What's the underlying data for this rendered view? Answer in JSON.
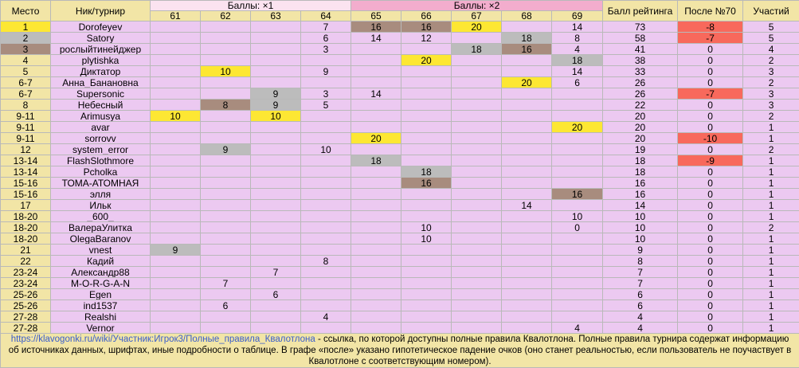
{
  "header": {
    "place": "Место",
    "nick": "Ник/турнир",
    "group1": "Баллы: ×1",
    "group2": "Баллы: ×2",
    "rating": "Балл рейтинга",
    "after": "После №70",
    "count": "Участий",
    "columns": [
      "61",
      "62",
      "63",
      "64",
      "65",
      "66",
      "67",
      "68",
      "69"
    ]
  },
  "rows": [
    {
      "place": "1",
      "name": "Dorofeyev",
      "cells": [
        "",
        "",
        "",
        "7",
        "16",
        "16",
        "20",
        "",
        "14"
      ],
      "rating": "73",
      "after": "-8",
      "count": "5"
    },
    {
      "place": "2",
      "name": "Satory",
      "cells": [
        "",
        "",
        "",
        "6",
        "14",
        "12",
        "",
        "18",
        "8"
      ],
      "rating": "58",
      "after": "-7",
      "count": "5"
    },
    {
      "place": "3",
      "name": "рослыйтинейджер",
      "cells": [
        "",
        "",
        "",
        "3",
        "",
        "",
        "18",
        "16",
        "4"
      ],
      "rating": "41",
      "after": "0",
      "count": "4"
    },
    {
      "place": "4",
      "name": "plytishka",
      "cells": [
        "",
        "",
        "",
        "",
        "",
        "20",
        "",
        "",
        "18"
      ],
      "rating": "38",
      "after": "0",
      "count": "2"
    },
    {
      "place": "5",
      "name": "Диктатор",
      "cells": [
        "",
        "10",
        "",
        "9",
        "",
        "",
        "",
        "",
        "14"
      ],
      "rating": "33",
      "after": "0",
      "count": "3"
    },
    {
      "place": "6-7",
      "name": "Анна_Банановна",
      "cells": [
        "",
        "",
        "",
        "",
        "",
        "",
        "",
        "20",
        "6"
      ],
      "rating": "26",
      "after": "0",
      "count": "2"
    },
    {
      "place": "6-7",
      "name": "Supersonic",
      "cells": [
        "",
        "",
        "9",
        "3",
        "14",
        "",
        "",
        "",
        ""
      ],
      "rating": "26",
      "after": "-7",
      "count": "3"
    },
    {
      "place": "8",
      "name": "Небесный",
      "cells": [
        "",
        "8",
        "9",
        "5",
        "",
        "",
        "",
        "",
        ""
      ],
      "rating": "22",
      "after": "0",
      "count": "3"
    },
    {
      "place": "9-11",
      "name": "Arimusya",
      "cells": [
        "10",
        "",
        "10",
        "",
        "",
        "",
        "",
        "",
        ""
      ],
      "rating": "20",
      "after": "0",
      "count": "2"
    },
    {
      "place": "9-11",
      "name": "avar",
      "cells": [
        "",
        "",
        "",
        "",
        "",
        "",
        "",
        "",
        "20"
      ],
      "rating": "20",
      "after": "0",
      "count": "1"
    },
    {
      "place": "9-11",
      "name": "sorrovv",
      "cells": [
        "",
        "",
        "",
        "",
        "20",
        "",
        "",
        "",
        ""
      ],
      "rating": "20",
      "after": "-10",
      "count": "1"
    },
    {
      "place": "12",
      "name": "system_error",
      "cells": [
        "",
        "9",
        "",
        "10",
        "",
        "",
        "",
        "",
        ""
      ],
      "rating": "19",
      "after": "0",
      "count": "2"
    },
    {
      "place": "13-14",
      "name": "FlashSlothmore",
      "cells": [
        "",
        "",
        "",
        "",
        "18",
        "",
        "",
        "",
        ""
      ],
      "rating": "18",
      "after": "-9",
      "count": "1"
    },
    {
      "place": "13-14",
      "name": "Pcholka",
      "cells": [
        "",
        "",
        "",
        "",
        "",
        "18",
        "",
        "",
        ""
      ],
      "rating": "18",
      "after": "0",
      "count": "1"
    },
    {
      "place": "15-16",
      "name": "ТОМА-АТОМНАЯ",
      "cells": [
        "",
        "",
        "",
        "",
        "",
        "16",
        "",
        "",
        ""
      ],
      "rating": "16",
      "after": "0",
      "count": "1"
    },
    {
      "place": "15-16",
      "name": "элля",
      "cells": [
        "",
        "",
        "",
        "",
        "",
        "",
        "",
        "",
        "16"
      ],
      "rating": "16",
      "after": "0",
      "count": "1"
    },
    {
      "place": "17",
      "name": "Ильк",
      "cells": [
        "",
        "",
        "",
        "",
        "",
        "",
        "",
        "14",
        ""
      ],
      "rating": "14",
      "after": "0",
      "count": "1"
    },
    {
      "place": "18-20",
      "name": "_600_",
      "cells": [
        "",
        "",
        "",
        "",
        "",
        "",
        "",
        "",
        "10"
      ],
      "rating": "10",
      "after": "0",
      "count": "1"
    },
    {
      "place": "18-20",
      "name": "ВалераУлитка",
      "cells": [
        "",
        "",
        "",
        "",
        "",
        "10",
        "",
        "",
        "0"
      ],
      "rating": "10",
      "after": "0",
      "count": "2"
    },
    {
      "place": "18-20",
      "name": "OlegaBaranov",
      "cells": [
        "",
        "",
        "",
        "",
        "",
        "10",
        "",
        "",
        ""
      ],
      "rating": "10",
      "after": "0",
      "count": "1"
    },
    {
      "place": "21",
      "name": "vnest",
      "cells": [
        "9",
        "",
        "",
        "",
        "",
        "",
        "",
        "",
        ""
      ],
      "rating": "9",
      "after": "0",
      "count": "1"
    },
    {
      "place": "22",
      "name": "Кадий",
      "cells": [
        "",
        "",
        "",
        "8",
        "",
        "",
        "",
        "",
        ""
      ],
      "rating": "8",
      "after": "0",
      "count": "1"
    },
    {
      "place": "23-24",
      "name": "Александр88",
      "cells": [
        "",
        "",
        "7",
        "",
        "",
        "",
        "",
        "",
        ""
      ],
      "rating": "7",
      "after": "0",
      "count": "1"
    },
    {
      "place": "23-24",
      "name": "M-O-R-G-A-N",
      "cells": [
        "",
        "7",
        "",
        "",
        "",
        "",
        "",
        "",
        ""
      ],
      "rating": "7",
      "after": "0",
      "count": "1"
    },
    {
      "place": "25-26",
      "name": "Egen",
      "cells": [
        "",
        "",
        "6",
        "",
        "",
        "",
        "",
        "",
        ""
      ],
      "rating": "6",
      "after": "0",
      "count": "1"
    },
    {
      "place": "25-26",
      "name": "ind1537",
      "cells": [
        "",
        "6",
        "",
        "",
        "",
        "",
        "",
        "",
        ""
      ],
      "rating": "6",
      "after": "0",
      "count": "1"
    },
    {
      "place": "27-28",
      "name": "Realshi",
      "cells": [
        "",
        "",
        "",
        "4",
        "",
        "",
        "",
        "",
        ""
      ],
      "rating": "4",
      "after": "0",
      "count": "1"
    },
    {
      "place": "27-28",
      "name": "Vernor",
      "cells": [
        "",
        "",
        "",
        "",
        "",
        "",
        "",
        "",
        "4"
      ],
      "rating": "4",
      "after": "0",
      "count": "1"
    }
  ],
  "highlights": [
    [
      "",
      "",
      "",
      "",
      "nb",
      "nb",
      "ny",
      "",
      ""
    ],
    [
      "",
      "",
      "",
      "",
      "",
      "",
      "",
      "ng",
      ""
    ],
    [
      "",
      "",
      "",
      "",
      "",
      "",
      "ng",
      "nb",
      ""
    ],
    [
      "",
      "",
      "",
      "",
      "",
      "ny",
      "",
      "",
      "ng"
    ],
    [
      "",
      "ny",
      "",
      "",
      "",
      "",
      "",
      "",
      ""
    ],
    [
      "",
      "",
      "",
      "",
      "",
      "",
      "",
      "ny",
      ""
    ],
    [
      "",
      "",
      "ng",
      "",
      "",
      "",
      "",
      "",
      ""
    ],
    [
      "",
      "nb",
      "ng",
      "",
      "",
      "",
      "",
      "",
      ""
    ],
    [
      "ny",
      "",
      "ny",
      "",
      "",
      "",
      "",
      "",
      ""
    ],
    [
      "",
      "",
      "",
      "",
      "",
      "",
      "",
      "",
      "ny"
    ],
    [
      "",
      "",
      "",
      "",
      "ny",
      "",
      "",
      "",
      ""
    ],
    [
      "",
      "ng",
      "",
      "",
      "",
      "",
      "",
      "",
      ""
    ],
    [
      "",
      "",
      "",
      "",
      "ng",
      "",
      "",
      "",
      ""
    ],
    [
      "",
      "",
      "",
      "",
      "",
      "ng",
      "",
      "",
      ""
    ],
    [
      "",
      "",
      "",
      "",
      "",
      "nb",
      "",
      "",
      ""
    ],
    [
      "",
      "",
      "",
      "",
      "",
      "",
      "",
      "",
      "nb"
    ],
    [
      "",
      "",
      "",
      "",
      "",
      "",
      "",
      "",
      ""
    ],
    [
      "",
      "",
      "",
      "",
      "",
      "",
      "",
      "",
      ""
    ],
    [
      "",
      "",
      "",
      "",
      "",
      "",
      "",
      "",
      ""
    ],
    [
      "",
      "",
      "",
      "",
      "",
      "",
      "",
      "",
      ""
    ],
    [
      "ng",
      "",
      "",
      "",
      "",
      "",
      "",
      "",
      ""
    ],
    [
      "",
      "",
      "",
      "",
      "",
      "",
      "",
      "",
      ""
    ],
    [
      "",
      "",
      "",
      "",
      "",
      "",
      "",
      "",
      ""
    ],
    [
      "",
      "",
      "",
      "",
      "",
      "",
      "",
      "",
      ""
    ],
    [
      "",
      "",
      "",
      "",
      "",
      "",
      "",
      "",
      ""
    ],
    [
      "",
      "",
      "",
      "",
      "",
      "",
      "",
      "",
      ""
    ],
    [
      "",
      "",
      "",
      "",
      "",
      "",
      "",
      "",
      ""
    ],
    [
      "",
      "",
      "",
      "",
      "",
      "",
      "",
      "",
      ""
    ]
  ],
  "footer": {
    "link": "https://klavogonki.ru/wiki/Участник:Игрок3/Полные_правила_Квалотлона",
    "text": " - ссылка, по которой доступны полные правила Квалотлона. Полные правила турнира содержат информацию об источниках данных, шрифтах, иные подробности о таблице. В графе «после» указано гипотетическое падение очков (оно станет реальностью, если пользователь не поучаствует в Квалотлоне с соответствующим номером)."
  },
  "colors": {
    "gold": "#fde733",
    "silver": "#bcbcbc",
    "bronze": "#a88c7e",
    "negative": "#f8695c",
    "cell": "#ecc9f1",
    "side": "#f2e5a6",
    "group1": "#fbe3f0",
    "group2": "#f3adcd",
    "link": "#3b5ecb"
  }
}
